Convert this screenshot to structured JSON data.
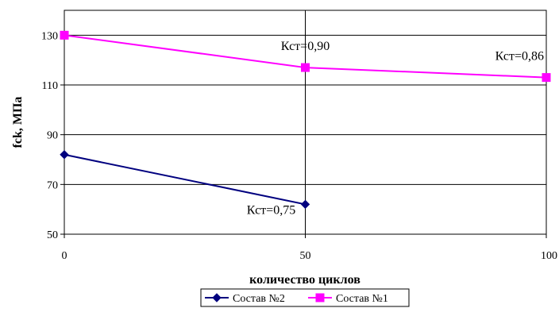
{
  "chart_data": {
    "type": "line",
    "xlabel": "количество циклов",
    "ylabel": "fck, МПа",
    "x_ticks": [
      "0",
      "50",
      "100"
    ],
    "y_ticks": [
      "50",
      "70",
      "90",
      "110",
      "130"
    ],
    "xlim": [
      0,
      100
    ],
    "ylim": [
      50,
      140
    ],
    "grid": "horizontal and vertical major gridlines",
    "legend_position": "bottom",
    "series": [
      {
        "name": "Состав №2",
        "color": "#00007f",
        "marker": "diamond",
        "x": [
          0,
          50
        ],
        "values": [
          82,
          62
        ]
      },
      {
        "name": "Состав №1",
        "color": "#ff00ff",
        "marker": "square",
        "x": [
          0,
          50,
          100
        ],
        "values": [
          130,
          117,
          113
        ]
      }
    ],
    "annotations": [
      {
        "text": "Кст=0,90",
        "x": 50,
        "y": 117
      },
      {
        "text": "Кст=0,86",
        "x": 100,
        "y": 113
      },
      {
        "text": "Кст=0,75",
        "x": 50,
        "y": 62
      }
    ]
  }
}
